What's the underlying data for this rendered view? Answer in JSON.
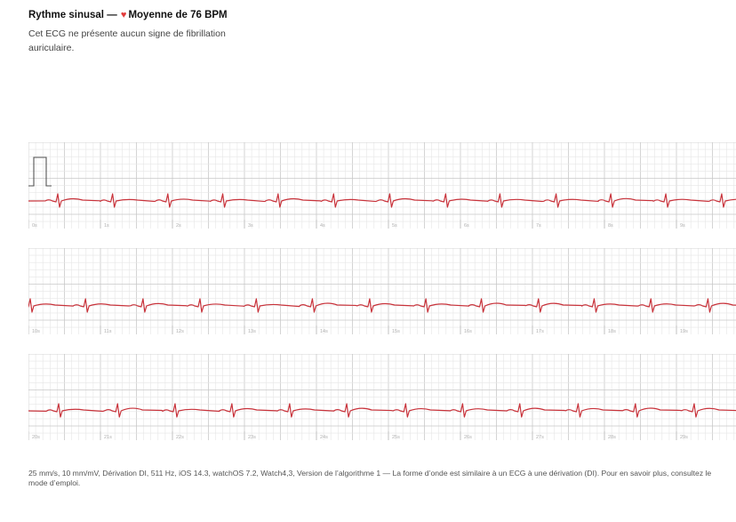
{
  "header": {
    "title": "Rythme sinusal —",
    "heart_icon": "heart-icon",
    "heart_color": "#e23b3b",
    "bpm_text": "Moyenne de 76 BPM",
    "description": "Cet ECG ne présente aucun signe de fibrillation auriculaire."
  },
  "strips": [
    {
      "time_labels": [
        "0s",
        "1s",
        "2s",
        "3s",
        "4s",
        "5s",
        "6s",
        "7s",
        "8s",
        "9s"
      ]
    },
    {
      "time_labels": [
        "10s",
        "11s",
        "12s",
        "13s",
        "14s",
        "15s",
        "16s",
        "17s",
        "18s",
        "19s"
      ]
    },
    {
      "time_labels": [
        "20s",
        "21s",
        "22s",
        "23s",
        "24s",
        "25s",
        "26s",
        "27s",
        "28s",
        "29s"
      ]
    }
  ],
  "footer": {
    "text": "25 mm/s, 10 mm/mV, Dérivation DI, 511 Hz, iOS 14.3, watchOS 7.2, Watch4,3, Version de l’algorithme 1 — La forme d’onde est similaire à un ECG à une dérivation (DI). Pour en savoir plus, consultez le mode d’emploi."
  },
  "colors": {
    "trace": "#c8323a",
    "grid_minor": "#e6e6e6",
    "grid_major": "#c9c9c9"
  }
}
